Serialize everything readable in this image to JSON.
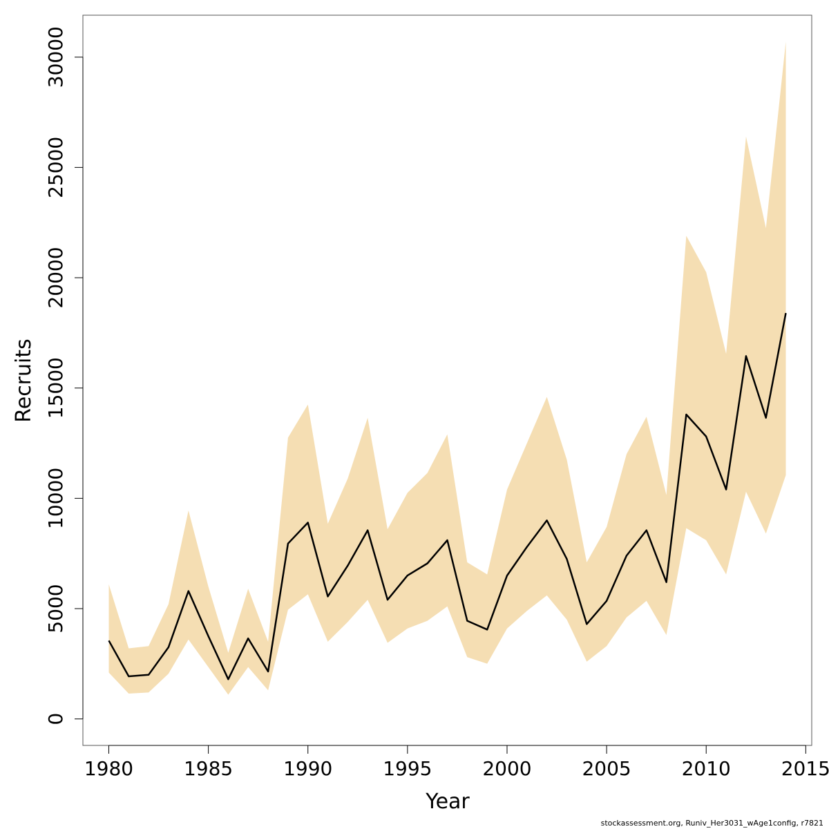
{
  "chart_data": {
    "type": "area",
    "xlabel": "Year",
    "ylabel": "Recruits",
    "xlim": [
      1978.7,
      2015.3
    ],
    "ylim": [
      -1200,
      31900
    ],
    "x_ticks": [
      1980,
      1985,
      1990,
      1995,
      2000,
      2005,
      2010,
      2015
    ],
    "y_ticks": [
      0,
      5000,
      10000,
      15000,
      20000,
      25000,
      30000
    ],
    "grid": false,
    "band_color": "#f5deb3",
    "line_color": "#000000",
    "years": [
      1980,
      1981,
      1982,
      1983,
      1984,
      1985,
      1986,
      1987,
      1988,
      1989,
      1990,
      1991,
      1992,
      1993,
      1994,
      1995,
      1996,
      1997,
      1998,
      1999,
      2000,
      2001,
      2002,
      2003,
      2004,
      2005,
      2006,
      2007,
      2008,
      2009,
      2010,
      2011,
      2012,
      2013,
      2014
    ],
    "series": [
      {
        "values": [
          3550,
          1930,
          2000,
          3250,
          5800,
          3750,
          1800,
          3650,
          2150,
          7950,
          8900,
          5550,
          6950,
          8550,
          5400,
          6500,
          7050,
          8100,
          4450,
          4050,
          6500,
          7800,
          9000,
          7250,
          4300,
          5350,
          7400,
          8550,
          6200,
          13800,
          12800,
          10400,
          16450,
          13650,
          18400
        ]
      }
    ],
    "band_upper": [
      6100,
      3200,
      3300,
      5200,
      9450,
      6000,
      3000,
      5900,
      3500,
      12750,
      14250,
      8850,
      10900,
      13650,
      8600,
      10250,
      11150,
      12900,
      7100,
      6550,
      10400,
      12500,
      14600,
      11750,
      7100,
      8700,
      12000,
      13700,
      10150,
      21900,
      20250,
      16550,
      26400,
      22250,
      30700
    ],
    "band_lower": [
      2100,
      1150,
      1200,
      2050,
      3600,
      2350,
      1100,
      2350,
      1300,
      4950,
      5650,
      3500,
      4400,
      5400,
      3450,
      4100,
      4450,
      5100,
      2800,
      2500,
      4100,
      4900,
      5600,
      4500,
      2600,
      3300,
      4600,
      5350,
      3800,
      8650,
      8100,
      6550,
      10300,
      8400,
      11050
    ],
    "caption": "stockassessment.org, Runiv_Her3031_wAge1config, r7821"
  }
}
